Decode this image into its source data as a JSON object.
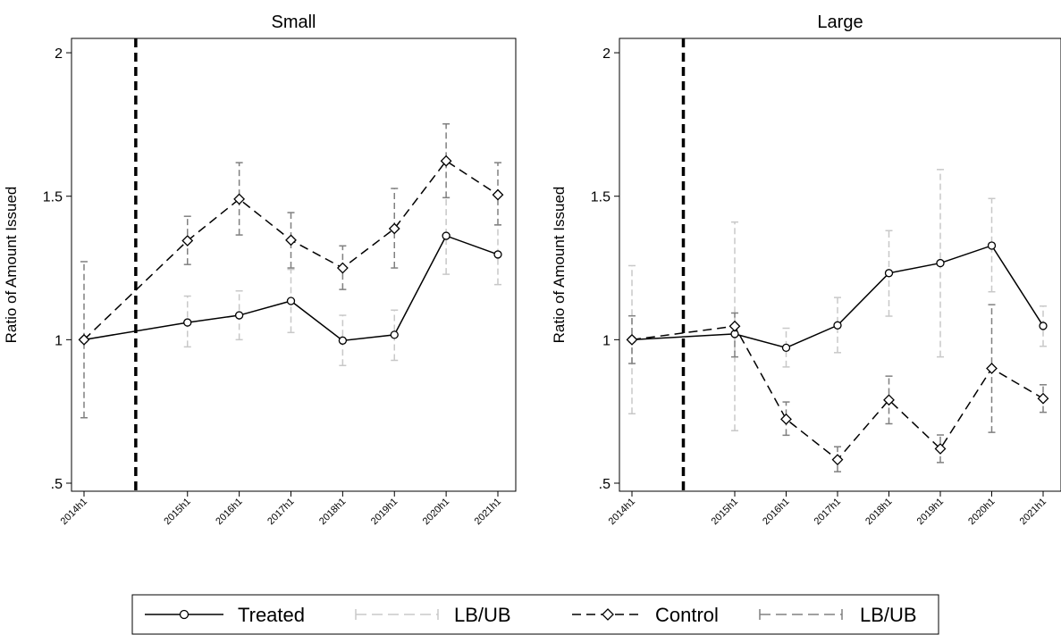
{
  "chart_data": [
    {
      "type": "line",
      "title": "Small",
      "ylabel": "Ratio of Amount Issued",
      "xlabel": "",
      "categories": [
        "2014h1",
        "2015h1",
        "2016h1",
        "2017h1",
        "2018h1",
        "2019h1",
        "2020h1",
        "2021h1"
      ],
      "x": [
        2014,
        2016,
        2017,
        2018,
        2019,
        2020,
        2021,
        2022
      ],
      "event_line_x": 2015,
      "ylim": [
        0.5,
        2.05
      ],
      "yticks": [
        0.5,
        1,
        1.5,
        2
      ],
      "ytick_labels": [
        ".5",
        "1",
        "1.5",
        "2"
      ],
      "grid": false,
      "series": [
        {
          "name": "Treated",
          "values": [
            1.0,
            1.06,
            1.085,
            1.135,
            0.997,
            1.017,
            1.362,
            1.297
          ],
          "lb": [
            1.0,
            0.975,
            1.0,
            1.025,
            0.91,
            0.928,
            1.228,
            1.192
          ],
          "ub": [
            1.0,
            1.152,
            1.17,
            1.245,
            1.085,
            1.103,
            1.495,
            1.4
          ]
        },
        {
          "name": "Control",
          "values": [
            1.0,
            1.345,
            1.49,
            1.347,
            1.25,
            1.387,
            1.623,
            1.505
          ],
          "lb": [
            0.728,
            1.262,
            1.365,
            1.25,
            1.175,
            1.25,
            1.495,
            1.4
          ],
          "ub": [
            1.272,
            1.43,
            1.617,
            1.443,
            1.327,
            1.527,
            1.752,
            1.617
          ]
        }
      ]
    },
    {
      "type": "line",
      "title": "Large",
      "ylabel": "Ratio of Amount Issued",
      "xlabel": "",
      "categories": [
        "2014h1",
        "2015h1",
        "2016h1",
        "2017h1",
        "2018h1",
        "2019h1",
        "2020h1",
        "2021h1"
      ],
      "x": [
        2014,
        2016,
        2017,
        2018,
        2019,
        2020,
        2021,
        2022
      ],
      "event_line_x": 2015,
      "ylim": [
        0.5,
        2.05
      ],
      "yticks": [
        0.5,
        1,
        1.5,
        2
      ],
      "ytick_labels": [
        ".5",
        "1",
        "1.5",
        "2"
      ],
      "grid": false,
      "series": [
        {
          "name": "Treated",
          "values": [
            1.0,
            1.02,
            0.972,
            1.05,
            1.232,
            1.267,
            1.328,
            1.048
          ],
          "lb": [
            0.742,
            0.683,
            0.905,
            0.955,
            1.082,
            0.94,
            1.167,
            0.977
          ],
          "ub": [
            1.258,
            1.41,
            1.04,
            1.147,
            1.38,
            1.593,
            1.492,
            1.117
          ]
        },
        {
          "name": "Control",
          "values": [
            1.0,
            1.047,
            0.723,
            0.582,
            0.79,
            0.62,
            0.9,
            0.795
          ],
          "lb": [
            0.917,
            0.94,
            0.667,
            0.54,
            0.707,
            0.572,
            0.677,
            0.747
          ],
          "ub": [
            1.083,
            1.093,
            0.783,
            0.627,
            0.873,
            0.668,
            1.122,
            0.843
          ]
        }
      ]
    }
  ],
  "legend": {
    "position": "bottom",
    "items": [
      {
        "label": "Treated",
        "style": "solid-circle"
      },
      {
        "label": "LB/UB",
        "style": "light-dashed-errorbar"
      },
      {
        "label": "Control",
        "style": "dashed-diamond"
      },
      {
        "label": "LB/UB",
        "style": "dark-dashed-errorbar"
      }
    ]
  },
  "colors": {
    "line": "#000000",
    "treated_ci": "#c8c8c8",
    "control_ci": "#808080",
    "event_line": "#000000"
  }
}
